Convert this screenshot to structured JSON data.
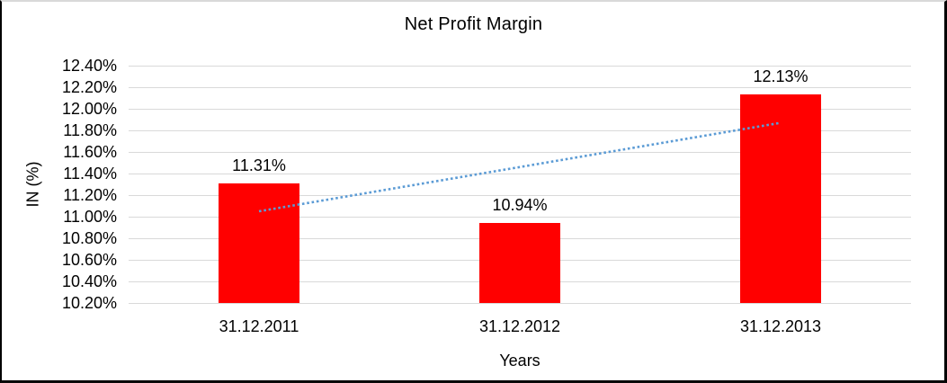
{
  "chart_data": {
    "type": "bar",
    "title": "Net Profit Margin",
    "xlabel": "Years",
    "ylabel": "IN (%)",
    "categories": [
      "31.12.2011",
      "31.12.2012",
      "31.12.2013"
    ],
    "series": [
      {
        "name": "Net Profit Margin",
        "values": [
          11.31,
          10.94,
          12.13
        ]
      }
    ],
    "data_labels": [
      "11.31%",
      "10.94%",
      "12.13%"
    ],
    "ylim": [
      10.2,
      12.4
    ],
    "ytick_step": 0.2,
    "ytick_suffix": "%",
    "grid": "horizontal-on",
    "legend": "none",
    "colors": {
      "bar": "#ff0000",
      "gridline": "#d9d9d9",
      "text": "#000000",
      "trendline": "#5b9bd5",
      "background": "#ffffff"
    },
    "trendline": {
      "style": "dotted",
      "start": {
        "category_index": 0,
        "value": 11.05
      },
      "end": {
        "category_index": 2,
        "value": 11.87
      }
    }
  }
}
